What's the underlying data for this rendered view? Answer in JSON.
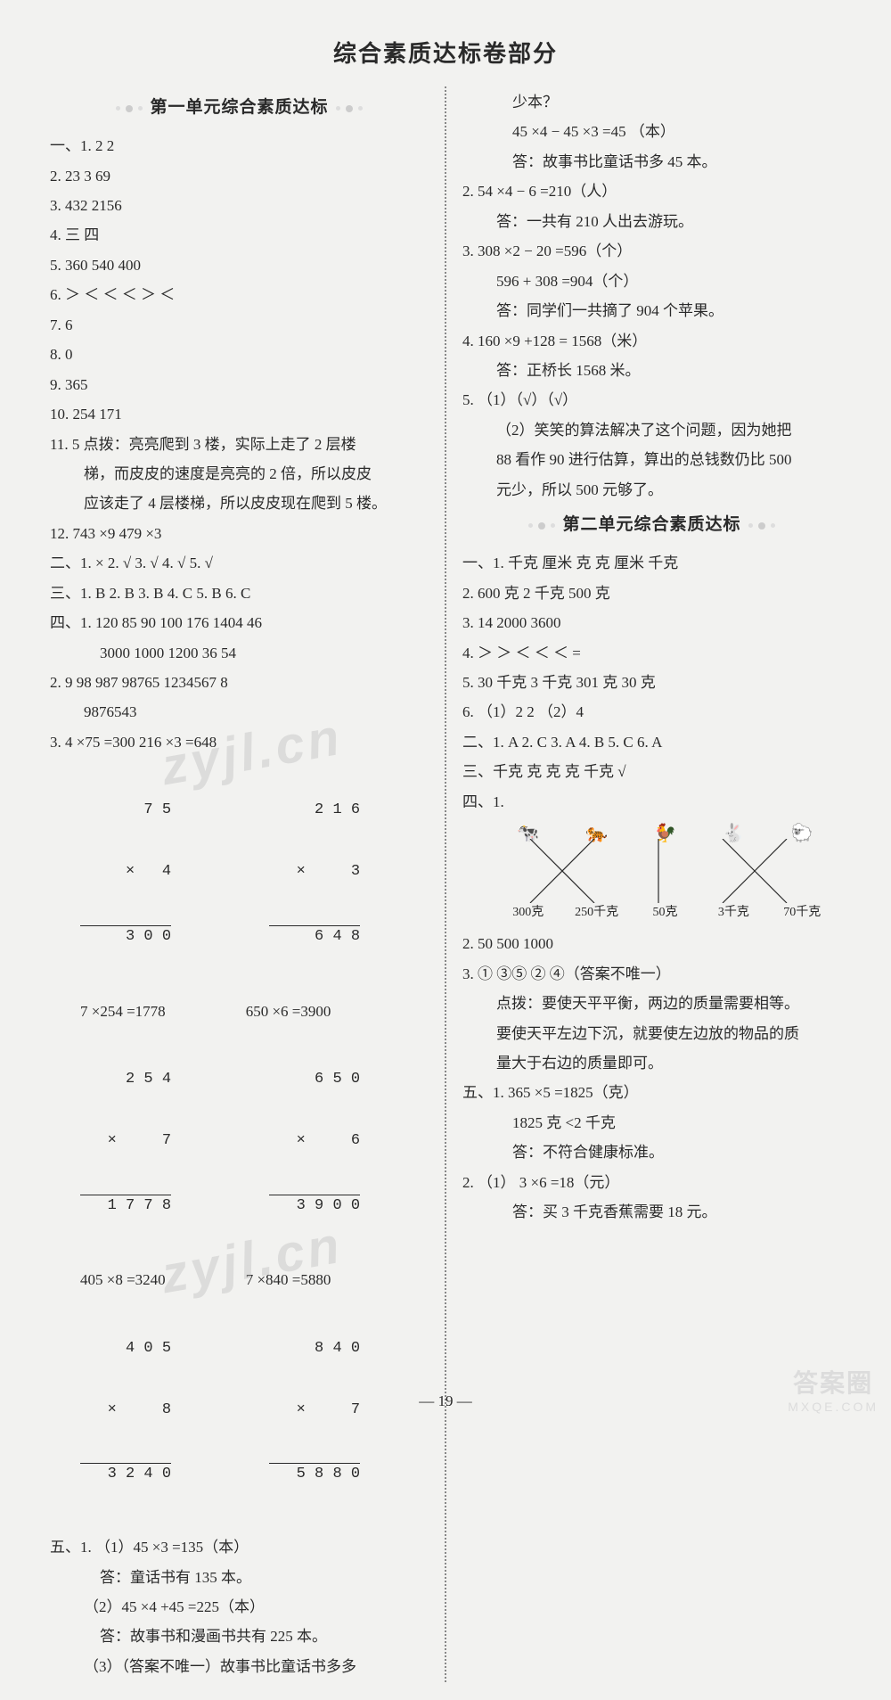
{
  "page_number": "19",
  "main_title": "综合素质达标卷部分",
  "watermark_text": "zyjl.cn",
  "watermark_logo_top": "答案圈",
  "watermark_logo_bottom": "MXQE.COM",
  "unit1_title": "第一单元综合素质达标",
  "unit2_title": "第二单元综合素质达标",
  "left": {
    "l1": "一、1.  2   2",
    "l2": "2.  23   3   69",
    "l3": "3.  432   2156",
    "l4": "4.  三   四",
    "l5": "5.  360   540   400",
    "l6": "6.  ＞   ＜   ＜   ＜   ＞   ＜",
    "l7": "7.  6",
    "l8": "8.  0",
    "l9": "9.  365",
    "l10": "10.  254   171",
    "l11a": "11.  5   点拨：亮亮爬到 3 楼，实际上走了 2 层楼",
    "l11b": "梯，而皮皮的速度是亮亮的 2 倍，所以皮皮",
    "l11c": "应该走了 4 层楼梯，所以皮皮现在爬到 5 楼。",
    "l12": "12.  743 ×9   479 ×3",
    "l13": "二、1.  ×   2.  √   3.  √   4.  √   5.  √",
    "l14": "三、1.  B   2.  B   3.  B   4.  C   5.  B   6.  C",
    "l15a": "四、1.  120   85   90   100   176   1404   46",
    "l15b": "3000   1000   1200   36   54",
    "l16a": "2.  9   98   987   98765   1234567   8",
    "l16b": "9876543",
    "l17": "3.  4 ×75 =300          216 ×3 =648",
    "m1a_top": " 7 5",
    "m1a_mid": "×   4",
    "m1a_bot": "3 0 0",
    "m1b_top": " 2 1 6",
    "m1b_mid": "×     3",
    "m1b_bot": " 6 4 8",
    "eq2a": "7 ×254 =1778",
    "eq2b": "650 ×6 =3900",
    "m2a_top": " 2 5 4",
    "m2a_mid": "×     7",
    "m2a_bot": "1 7 7 8",
    "m2b_top": " 6 5 0",
    "m2b_mid": "×     6",
    "m2b_bot": "3 9 0 0",
    "eq3a": "405 ×8 =3240",
    "eq3b": "7 ×840 =5880",
    "m3a_top": " 4 0 5",
    "m3a_mid": "×     8",
    "m3a_bot": "3 2 4 0",
    "m3b_top": " 8 4 0",
    "m3b_mid": "×     7",
    "m3b_bot": "5 8 8 0",
    "l18": "五、1.  （1）45 ×3 =135（本）",
    "l18b": "答：童话书有 135 本。",
    "l19": "（2）45 ×4 +45 =225（本）",
    "l19b": "答：故事书和漫画书共有 225 本。",
    "l20": "（3）（答案不唯一）故事书比童话书多多"
  },
  "right": {
    "r0a": "少本？",
    "r0b": "45 ×4 − 45 ×3 =45 （本）",
    "r0c": "答：故事书比童话书多 45 本。",
    "r1a": "2.  54 ×4 − 6 =210（人）",
    "r1b": "答：一共有 210 人出去游玩。",
    "r2a": "3.  308 ×2 − 20 =596（个）",
    "r2b": "596 + 308 =904（个）",
    "r2c": "答：同学们一共摘了 904 个苹果。",
    "r3a": "4.  160 ×9 +128 = 1568（米）",
    "r3b": "答：正桥长 1568 米。",
    "r4a": "5.  （1）（√）（√）",
    "r4b": "（2）笑笑的算法解决了这个问题，因为她把",
    "r4c": "88 看作 90 进行估算，算出的总钱数仍比 500",
    "r4d": "元少，所以 500 元够了。",
    "u2_l1": "一、1.  千克   厘米   克   克   厘米   千克",
    "u2_l2": "2.  600 克   2 千克   500 克",
    "u2_l3": "3.  14   2000   3600",
    "u2_l4": "4.  ＞   ＞   ＜   ＜   ＜   =",
    "u2_l5": "5.  30 千克   3 千克   301 克   30 克",
    "u2_l6": "6.  （1）2   2     （2）4",
    "u2_l7": "二、1.  A   2.  C   3.  A   4.  B   5.  C   6.  A",
    "u2_l8": "三、千克   克   克   克   千克   √",
    "u2_l9": "四、1.",
    "match_top": [
      "🐄",
      "🐅",
      "🐓",
      "🐇",
      "🐑"
    ],
    "match_bot": [
      "300克",
      "250千克",
      "50克",
      "3千克",
      "70千克"
    ],
    "u2_l10": "2.  50   500   1000",
    "u2_l11a": "3.  ①   ③⑤   ②   ④（答案不唯一）",
    "u2_l11b": "点拨：要使天平平衡，两边的质量需要相等。",
    "u2_l11c": "要使天平左边下沉，就要使左边放的物品的质",
    "u2_l11d": "量大于右边的质量即可。",
    "u2_l12a": "五、1.  365 ×5 =1825（克）",
    "u2_l12b": "1825 克 <2 千克",
    "u2_l12c": "答：不符合健康标准。",
    "u2_l13a": "2.  （1） 3 ×6 =18（元）",
    "u2_l13b": "答：买 3 千克香蕉需要 18 元。"
  },
  "match_edges": [
    [
      0,
      1
    ],
    [
      1,
      0
    ],
    [
      2,
      2
    ],
    [
      3,
      4
    ],
    [
      4,
      3
    ]
  ]
}
